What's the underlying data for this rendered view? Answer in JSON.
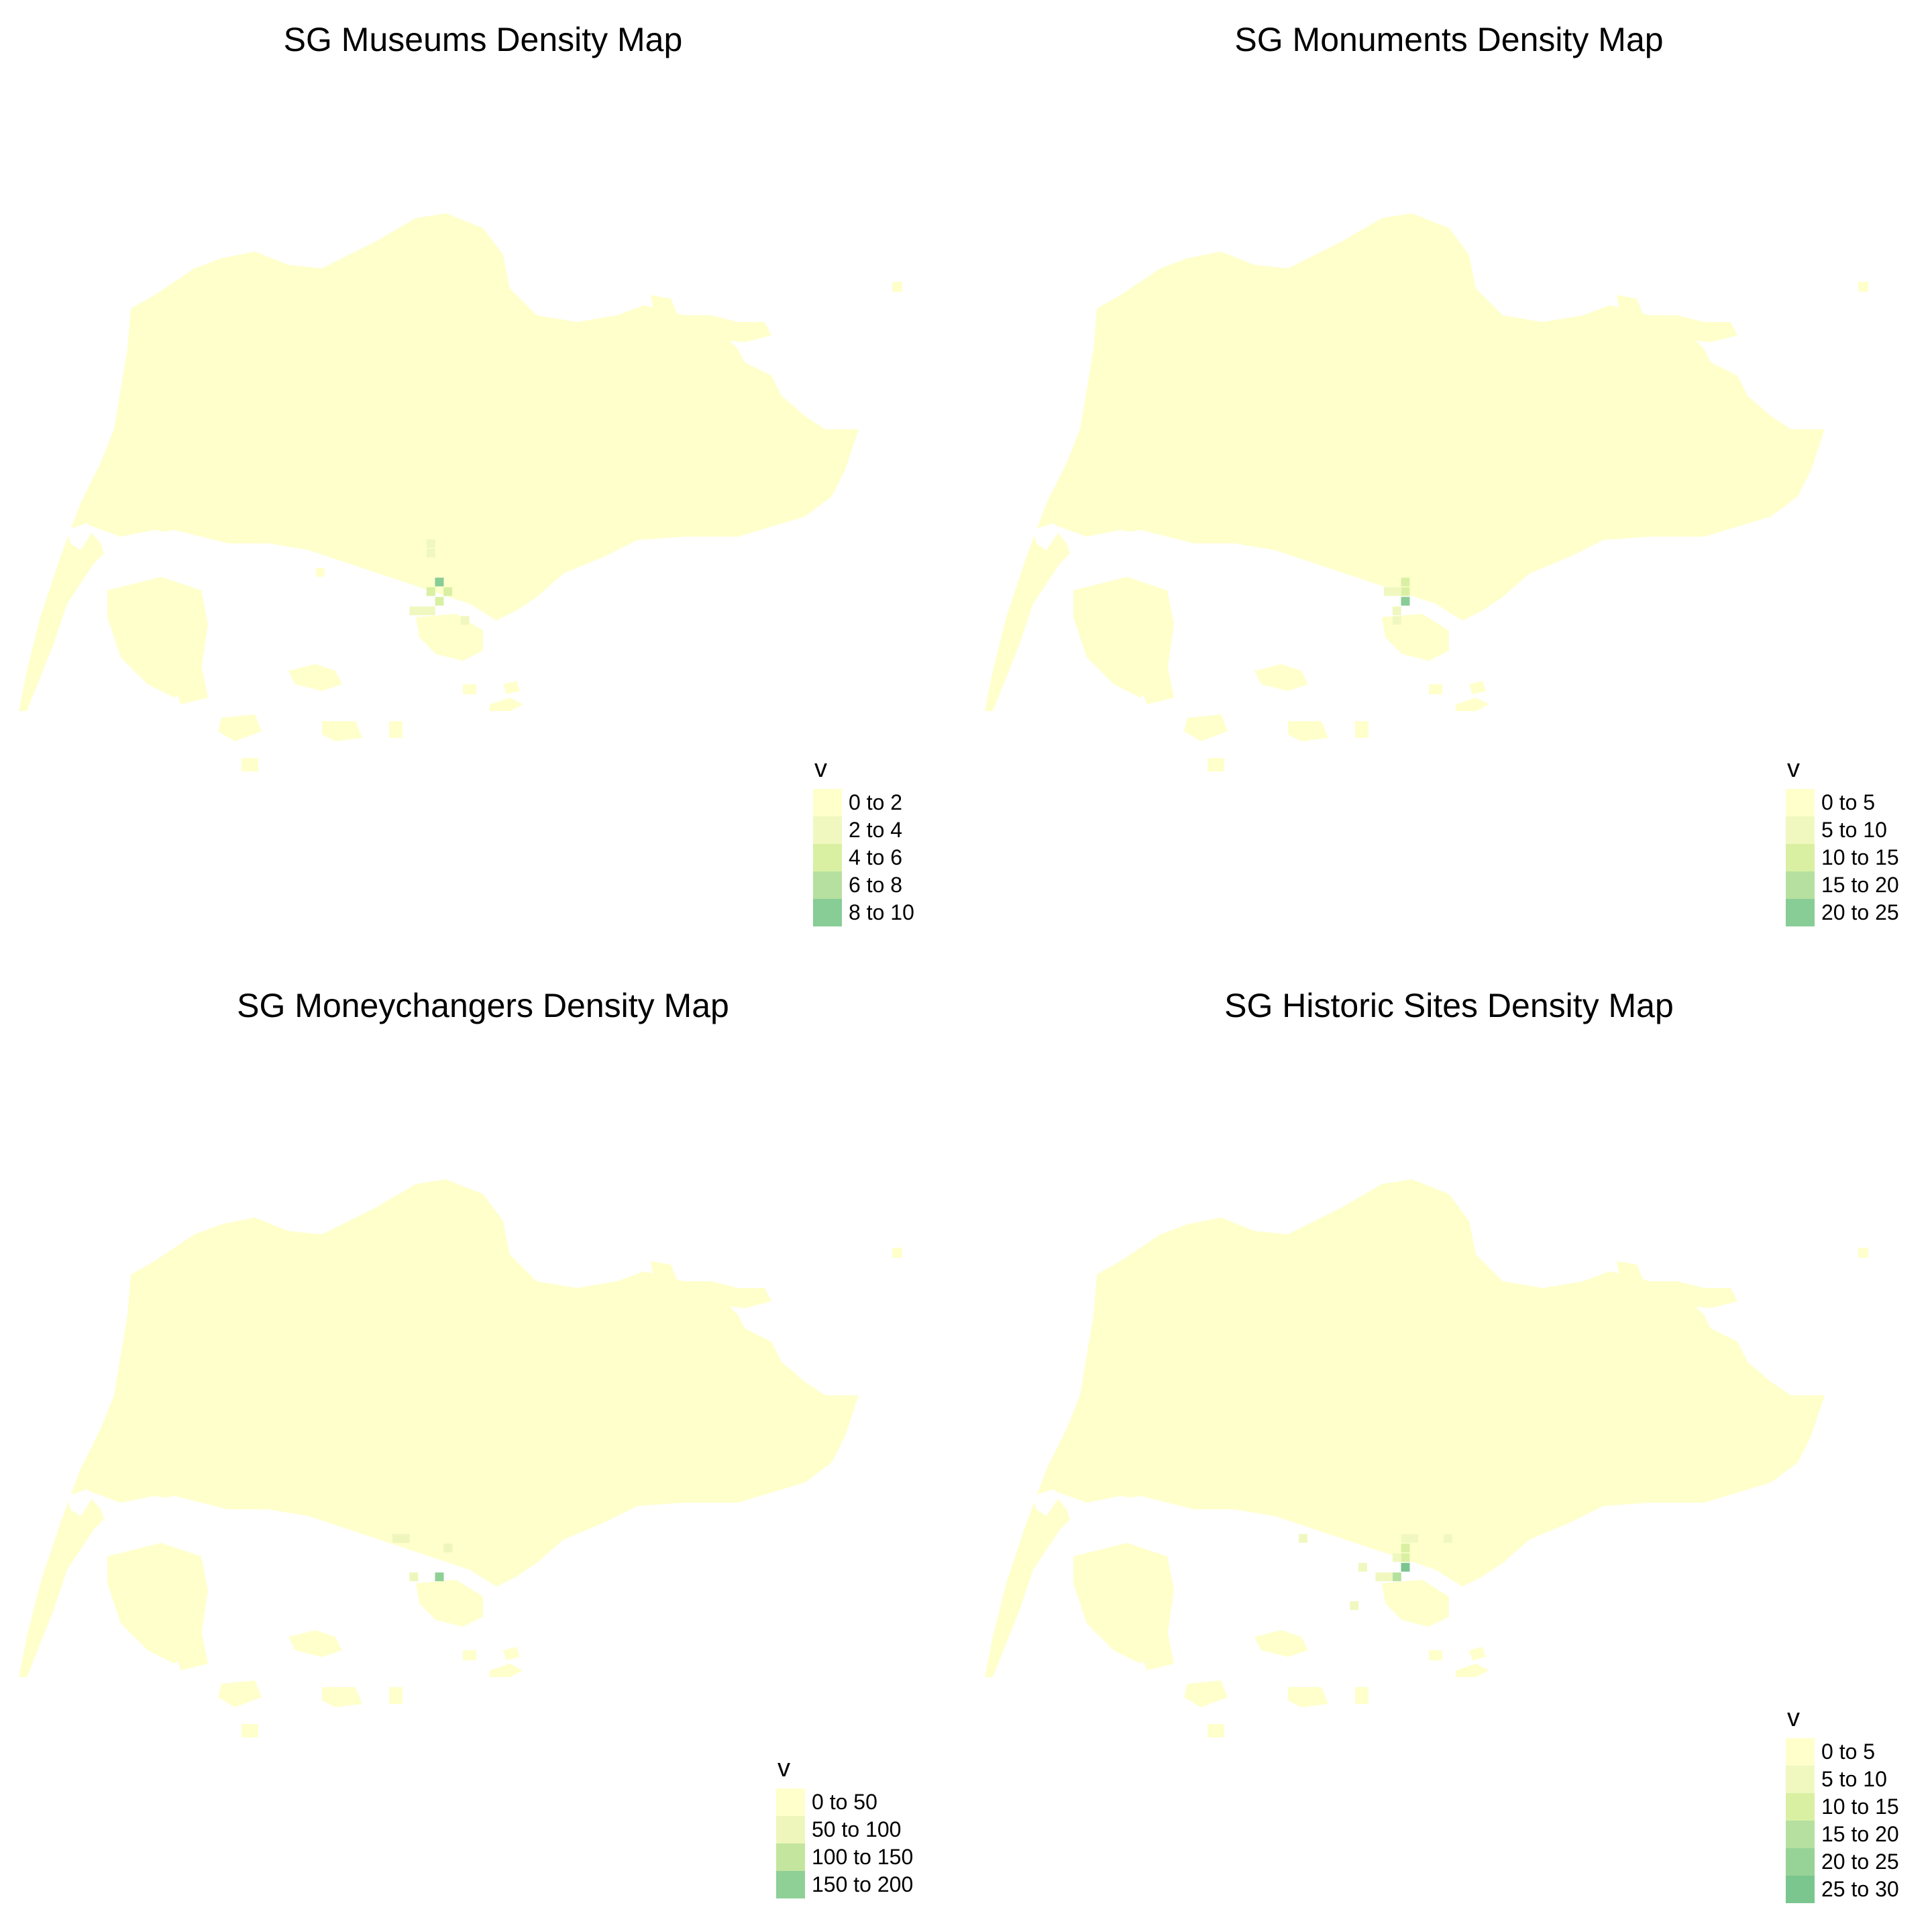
{
  "panels": [
    {
      "title": "SG Museums Density Map",
      "legend": {
        "title": "v",
        "items": [
          {
            "label": "0 to 2",
            "color": "#ffffcc"
          },
          {
            "label": "2 to 4",
            "color": "#f0f8c0"
          },
          {
            "label": "4 to 6",
            "color": "#d9f0a3"
          },
          {
            "label": "6 to 8",
            "color": "#b5e0a0"
          },
          {
            "label": "8 to 10",
            "color": "#88cc96"
          }
        ]
      },
      "hotspots": [
        {
          "lon": 103.85,
          "lat": 1.302,
          "v": 9
        },
        {
          "lon": 103.845,
          "lat": 1.297,
          "v": 6
        },
        {
          "lon": 103.855,
          "lat": 1.297,
          "v": 5
        },
        {
          "lon": 103.85,
          "lat": 1.292,
          "v": 5
        },
        {
          "lon": 103.845,
          "lat": 1.287,
          "v": 3
        },
        {
          "lon": 103.84,
          "lat": 1.287,
          "v": 3
        },
        {
          "lon": 103.835,
          "lat": 1.287,
          "v": 3
        },
        {
          "lon": 103.845,
          "lat": 1.317,
          "v": 3
        },
        {
          "lon": 103.845,
          "lat": 1.322,
          "v": 3
        },
        {
          "lon": 103.865,
          "lat": 1.282,
          "v": 3
        },
        {
          "lon": 103.71,
          "lat": 1.342,
          "v": 2
        },
        {
          "lon": 103.78,
          "lat": 1.307,
          "v": 2
        }
      ]
    },
    {
      "title": "SG Monuments Density Map",
      "legend": {
        "title": "v",
        "items": [
          {
            "label": "0 to 5",
            "color": "#ffffcc"
          },
          {
            "label": "5 to 10",
            "color": "#f0f8c0"
          },
          {
            "label": "10 to 15",
            "color": "#d9f0a3"
          },
          {
            "label": "15 to 20",
            "color": "#b5e0a0"
          },
          {
            "label": "20 to 25",
            "color": "#88cc96"
          }
        ]
      },
      "hotspots": [
        {
          "lon": 103.85,
          "lat": 1.292,
          "v": 22
        },
        {
          "lon": 103.85,
          "lat": 1.297,
          "v": 14
        },
        {
          "lon": 103.85,
          "lat": 1.302,
          "v": 12
        },
        {
          "lon": 103.845,
          "lat": 1.297,
          "v": 10
        },
        {
          "lon": 103.845,
          "lat": 1.287,
          "v": 8
        },
        {
          "lon": 103.845,
          "lat": 1.282,
          "v": 7
        },
        {
          "lon": 103.84,
          "lat": 1.297,
          "v": 6
        }
      ]
    },
    {
      "title": "SG Moneychangers Density Map",
      "legend": {
        "title": "v",
        "items": [
          {
            "label": "0 to 50",
            "color": "#ffffcc"
          },
          {
            "label": "50 to 100",
            "color": "#eef6bc"
          },
          {
            "label": "100 to 150",
            "color": "#c4e59e"
          },
          {
            "label": "150 to 200",
            "color": "#8fd096"
          }
        ]
      },
      "hotspots": [
        {
          "lon": 103.85,
          "lat": 1.287,
          "v": 170
        },
        {
          "lon": 103.825,
          "lat": 1.307,
          "v": 80
        },
        {
          "lon": 103.83,
          "lat": 1.307,
          "v": 70
        },
        {
          "lon": 103.855,
          "lat": 1.302,
          "v": 60
        },
        {
          "lon": 103.835,
          "lat": 1.287,
          "v": 60
        }
      ]
    },
    {
      "title": "SG Historic Sites Density Map",
      "legend": {
        "title": "v",
        "items": [
          {
            "label": "0 to 5",
            "color": "#ffffcc"
          },
          {
            "label": "5 to 10",
            "color": "#f0f8c0"
          },
          {
            "label": "10 to 15",
            "color": "#d9f0a3"
          },
          {
            "label": "15 to 20",
            "color": "#b5e0a0"
          },
          {
            "label": "20 to 25",
            "color": "#97d396"
          },
          {
            "label": "25 to 30",
            "color": "#7bc58f"
          }
        ]
      },
      "hotspots": [
        {
          "lon": 103.85,
          "lat": 1.292,
          "v": 28
        },
        {
          "lon": 103.845,
          "lat": 1.287,
          "v": 18
        },
        {
          "lon": 103.85,
          "lat": 1.297,
          "v": 14
        },
        {
          "lon": 103.85,
          "lat": 1.302,
          "v": 12
        },
        {
          "lon": 103.85,
          "lat": 1.307,
          "v": 10
        },
        {
          "lon": 103.84,
          "lat": 1.287,
          "v": 9
        },
        {
          "lon": 103.835,
          "lat": 1.287,
          "v": 8
        },
        {
          "lon": 103.845,
          "lat": 1.297,
          "v": 8
        },
        {
          "lon": 103.855,
          "lat": 1.307,
          "v": 6
        },
        {
          "lon": 103.825,
          "lat": 1.292,
          "v": 6
        },
        {
          "lon": 103.875,
          "lat": 1.307,
          "v": 6
        },
        {
          "lon": 103.79,
          "lat": 1.307,
          "v": 6
        },
        {
          "lon": 103.82,
          "lat": 1.272,
          "v": 6
        }
      ]
    }
  ]
}
